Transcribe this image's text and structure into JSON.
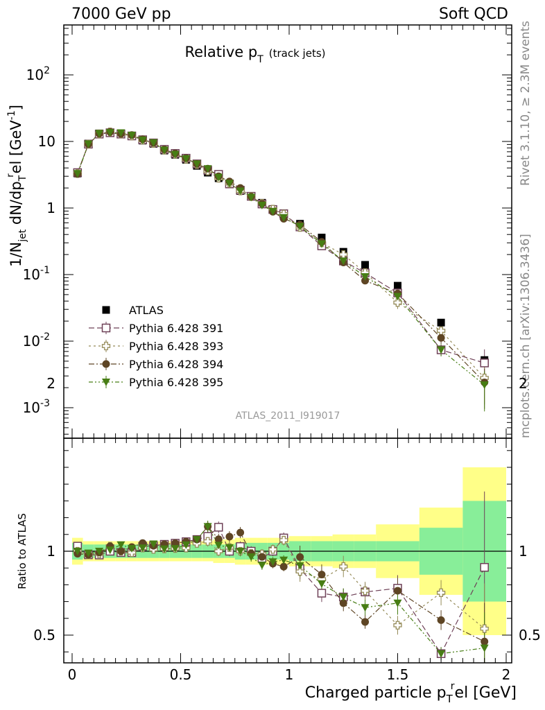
{
  "header": {
    "left": "7000 GeV pp",
    "right": "Soft QCD"
  },
  "side_labels": {
    "rivet": "Rivet 3.1.10, ≥ 2.3M events",
    "mcplots": "mcplots.cern.ch [arXiv:1306.3436]"
  },
  "chart_data": {
    "type": "scatter",
    "title_main": "Relative p",
    "title_sub": "T",
    "title_paren": "(track jets)",
    "analysis_id": "ATLAS_2011_I919017",
    "xlabel": "Charged particle p",
    "xlabel_sub": "T",
    "xlabel_sup": "r",
    "xlabel_tail": "el [GeV]",
    "ylabel": "1/N",
    "ylabel_sub": "jet",
    "ylabel_mid": " dN/dp",
    "ylabel_sub2": "T",
    "ylabel_sup2": "r",
    "ylabel_tail": "el [GeV",
    "ylabel_sup3": "-1",
    "ylabel_end": "]",
    "ratio_ylabel": "Ratio to ATLAS",
    "xlim": [
      -0.03,
      2.05
    ],
    "ylim": [
      0.0003,
      1000
    ],
    "yscale": "log",
    "ratio_ylim": [
      0.35,
      2.3
    ],
    "x_ticks": [
      "0",
      "0.5",
      "1",
      "1.5",
      "2"
    ],
    "y_ticks": [
      "10^-3",
      "10^-2",
      "10^-1",
      "1",
      "10",
      "10^2"
    ],
    "ratio_ticks": [
      "0.5",
      "1",
      "2"
    ],
    "legend_position": "lower-left",
    "bins": [
      0.025,
      0.075,
      0.125,
      0.175,
      0.225,
      0.275,
      0.325,
      0.375,
      0.425,
      0.475,
      0.525,
      0.575,
      0.625,
      0.675,
      0.725,
      0.775,
      0.825,
      0.875,
      0.925,
      0.975,
      1.05,
      1.15,
      1.25,
      1.35,
      1.5,
      1.7,
      1.9
    ],
    "bin_edges": [
      0,
      0.05,
      0.1,
      0.15,
      0.2,
      0.25,
      0.3,
      0.35,
      0.4,
      0.45,
      0.5,
      0.55,
      0.6,
      0.65,
      0.7,
      0.75,
      0.8,
      0.85,
      0.9,
      0.95,
      1.0,
      1.1,
      1.2,
      1.3,
      1.4,
      1.6,
      1.8,
      2.0
    ],
    "band_inner": [
      0.05,
      0.04,
      0.04,
      0.04,
      0.04,
      0.04,
      0.04,
      0.04,
      0.04,
      0.04,
      0.04,
      0.04,
      0.04,
      0.04,
      0.04,
      0.05,
      0.05,
      0.05,
      0.05,
      0.05,
      0.06,
      0.06,
      0.06,
      0.06,
      0.06,
      0.14,
      0.3
    ],
    "band_outer": [
      0.08,
      0.06,
      0.06,
      0.06,
      0.06,
      0.06,
      0.06,
      0.06,
      0.06,
      0.06,
      0.06,
      0.06,
      0.06,
      0.07,
      0.07,
      0.08,
      0.08,
      0.08,
      0.08,
      0.08,
      0.09,
      0.09,
      0.1,
      0.1,
      0.16,
      0.26,
      0.5
    ],
    "series": [
      {
        "name": "ATLAS",
        "marker": "square-filled",
        "color": "#000000",
        "values": [
          3.3,
          9.3,
          13.2,
          13.5,
          13.0,
          12.2,
          10.3,
          9.2,
          7.3,
          6.3,
          5.3,
          4.3,
          3.4,
          2.8,
          2.3,
          1.8,
          1.5,
          1.2,
          0.95,
          0.76,
          0.58,
          0.36,
          0.22,
          0.14,
          0.068,
          0.019,
          0.0052
        ]
      },
      {
        "name": "Pythia 6.428 391",
        "marker": "square-open",
        "color": "#6e4057",
        "values": [
          3.4,
          9.1,
          12.9,
          13.5,
          12.9,
          12.1,
          10.6,
          9.5,
          7.6,
          6.6,
          5.6,
          4.6,
          3.7,
          3.2,
          2.3,
          1.85,
          1.5,
          1.15,
          0.95,
          0.82,
          0.52,
          0.27,
          0.16,
          0.106,
          0.053,
          0.0074,
          0.0047
        ]
      },
      {
        "name": "Pythia 6.428 393",
        "marker": "cross-open",
        "color": "#948a57",
        "values": [
          3.3,
          9.1,
          13.0,
          13.9,
          13.0,
          12.1,
          10.5,
          9.3,
          7.4,
          6.4,
          5.4,
          4.5,
          3.6,
          2.8,
          2.35,
          1.8,
          1.48,
          1.18,
          0.96,
          0.81,
          0.51,
          0.3,
          0.2,
          0.107,
          0.038,
          0.0143,
          0.0028
        ]
      },
      {
        "name": "Pythia 6.428 394",
        "marker": "circle-filled",
        "color": "#5e4524",
        "values": [
          3.25,
          9.1,
          13.1,
          13.9,
          13.0,
          12.5,
          10.8,
          9.5,
          7.6,
          6.6,
          5.6,
          4.6,
          3.9,
          3.0,
          2.5,
          2.0,
          1.48,
          1.16,
          0.88,
          0.69,
          0.56,
          0.31,
          0.152,
          0.081,
          0.052,
          0.0112,
          0.0024
        ]
      },
      {
        "name": "Pythia 6.428 395",
        "marker": "triangle-down",
        "color": "#477d14",
        "values": [
          3.3,
          9.2,
          13.2,
          13.6,
          13.5,
          12.4,
          10.5,
          9.6,
          7.4,
          6.4,
          5.5,
          4.6,
          3.9,
          2.9,
          2.35,
          1.8,
          1.45,
          1.1,
          0.89,
          0.72,
          0.53,
          0.29,
          0.16,
          0.093,
          0.047,
          0.0074,
          0.0022
        ]
      }
    ]
  }
}
